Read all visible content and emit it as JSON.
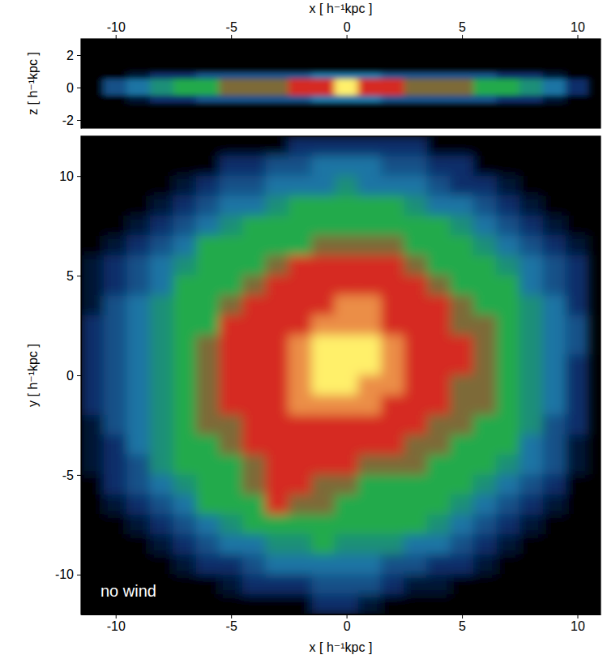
{
  "chart_data": [
    {
      "type": "heatmap",
      "x_label": "x [ h⁻¹kpc ]",
      "y_label": "z [ h⁻¹kpc ]",
      "xlim": [
        -11.5,
        11
      ],
      "ylim": [
        -2.5,
        3
      ],
      "xticks": [
        -10,
        -5,
        0,
        5,
        10
      ],
      "yticks": [
        -2,
        0,
        2
      ],
      "zlim": [
        0,
        5
      ],
      "x": [
        -11,
        -10,
        -9,
        -8,
        -7,
        -6,
        -5,
        -4,
        -3,
        -2,
        -1,
        0,
        1,
        2,
        3,
        4,
        5,
        6,
        7,
        8,
        9,
        10
      ],
      "y": [
        0.75,
        0.25,
        -0.25,
        -0.75
      ],
      "cells": [
        [
          0,
          0,
          0.5,
          1,
          1,
          1.5,
          1.5,
          1.5,
          1.5,
          1.5,
          2,
          2,
          2,
          1.5,
          1.5,
          1.5,
          1.5,
          1.5,
          1,
          1,
          0.5,
          0
        ],
        [
          0,
          1.5,
          2,
          2.5,
          3,
          3,
          3.5,
          3.5,
          3.5,
          4,
          4,
          5,
          4,
          4,
          3.5,
          3.5,
          3.5,
          3,
          3,
          2.5,
          2,
          1
        ],
        [
          0,
          1.5,
          2,
          2.5,
          3,
          3,
          3.5,
          3.5,
          3.5,
          4,
          4,
          5,
          4,
          4,
          3.5,
          3.5,
          3.5,
          3,
          3,
          2.5,
          2,
          1
        ],
        [
          0,
          0,
          0.5,
          1,
          1,
          1.5,
          1.5,
          1.5,
          1.5,
          1.5,
          2,
          2,
          2,
          1.5,
          1.5,
          1.5,
          1.5,
          1.5,
          1,
          1,
          0.5,
          0
        ]
      ]
    },
    {
      "type": "heatmap",
      "x_label": "x [ h⁻¹kpc ]",
      "y_label": "y [ h⁻¹kpc ]",
      "annotation": "no wind",
      "xlim": [
        -11.5,
        11
      ],
      "ylim": [
        -12,
        12
      ],
      "xticks": [
        -10,
        -5,
        0,
        5,
        10
      ],
      "yticks": [
        -10,
        -5,
        0,
        5,
        10
      ],
      "zlim": [
        0,
        5
      ],
      "x": [
        -11,
        -10,
        -9,
        -8,
        -7,
        -6,
        -5,
        -4,
        -3,
        -2,
        -1,
        0,
        1,
        2,
        3,
        4,
        5,
        6,
        7,
        8,
        9,
        10
      ],
      "y": [
        11.5,
        10.5,
        9.5,
        8.5,
        7.5,
        6.5,
        5.5,
        4.5,
        3.5,
        2.5,
        1.5,
        0.5,
        -0.5,
        -1.5,
        -2.5,
        -3.5,
        -4.5,
        -5.5,
        -6.5,
        -7.5,
        -8.5,
        -9.5,
        -10.5,
        -11.5
      ],
      "cells": [
        [
          0,
          0,
          0,
          0,
          0,
          0,
          0,
          0,
          0,
          1,
          1,
          1,
          1,
          1,
          1,
          0,
          0,
          0,
          0,
          0,
          0,
          0
        ],
        [
          0,
          0,
          0,
          0,
          0,
          0,
          1,
          1,
          1.5,
          1.5,
          2,
          2,
          2,
          1.5,
          1.5,
          1,
          1,
          0,
          0,
          0,
          0,
          0
        ],
        [
          0,
          0,
          0,
          0,
          0.5,
          1,
          1.5,
          1.5,
          2,
          2,
          2,
          2.5,
          2,
          2,
          2,
          1.5,
          1,
          1,
          0.5,
          0,
          0,
          0
        ],
        [
          0,
          0,
          0,
          0.5,
          1,
          1.5,
          2,
          2,
          2.5,
          3,
          3,
          3,
          3,
          3,
          2.5,
          2,
          2,
          1.5,
          1,
          0.5,
          0,
          0
        ],
        [
          0,
          0,
          0.5,
          1,
          1.5,
          2,
          2.5,
          3,
          3,
          3,
          3,
          3,
          3,
          3,
          3,
          3,
          2.5,
          2,
          1.5,
          1,
          0.5,
          0
        ],
        [
          0,
          0.5,
          1,
          1.5,
          2,
          3,
          3,
          3,
          3,
          3,
          3.5,
          3.5,
          3.5,
          3.5,
          3,
          3,
          3,
          2.5,
          2,
          1.5,
          1,
          0.5
        ],
        [
          0.5,
          1,
          1.5,
          2,
          2.5,
          3,
          3,
          3,
          3.5,
          4,
          4,
          4,
          4,
          4,
          3.5,
          3,
          3,
          3,
          2.5,
          2,
          1.5,
          1
        ],
        [
          0.5,
          1,
          1.5,
          2,
          3,
          3,
          3,
          3.5,
          4,
          4,
          4,
          4,
          4,
          4,
          4,
          3.5,
          3,
          3,
          3,
          2,
          1.5,
          1
        ],
        [
          0.5,
          1.5,
          2,
          2.5,
          3,
          3,
          3.5,
          4,
          4,
          4,
          4,
          4.5,
          4.5,
          4,
          4,
          4,
          3.5,
          3,
          3,
          2.5,
          2,
          1
        ],
        [
          1,
          1.5,
          2,
          2.5,
          3,
          3,
          4,
          4,
          4,
          4,
          4.5,
          4.5,
          4.5,
          4,
          4,
          4,
          3.5,
          3.5,
          3,
          2.5,
          2,
          1.5
        ],
        [
          1,
          1.5,
          2,
          2.5,
          3,
          3.5,
          4,
          4,
          4,
          4.5,
          5,
          5,
          5,
          4.5,
          4,
          4,
          4,
          3.5,
          3,
          2.5,
          2,
          1.5
        ],
        [
          1,
          1.5,
          2,
          2.5,
          3,
          3.5,
          4,
          4,
          4,
          4.5,
          5,
          5,
          5,
          4.5,
          4,
          4,
          4,
          3.5,
          3,
          2.5,
          2,
          1
        ],
        [
          1,
          1.5,
          2,
          2.5,
          3,
          3.5,
          4,
          4,
          4,
          4.5,
          5,
          5,
          4.5,
          4.5,
          4,
          4,
          3.5,
          3.5,
          3,
          2.5,
          2,
          1
        ],
        [
          1,
          1.5,
          2,
          2.5,
          3,
          3.5,
          4,
          4,
          4,
          4.5,
          4.5,
          4.5,
          4.5,
          4,
          4,
          4,
          3.5,
          3.5,
          3,
          2.5,
          2,
          1
        ],
        [
          0.5,
          1.5,
          2,
          2.5,
          3,
          3.5,
          3.5,
          4,
          4,
          4,
          4,
          4,
          4,
          4,
          4,
          3.5,
          3.5,
          3,
          3,
          2.5,
          1.5,
          1
        ],
        [
          0.5,
          1,
          2,
          2.5,
          3,
          3,
          3.5,
          4,
          4,
          4,
          4,
          4,
          4,
          4,
          3.5,
          3.5,
          3,
          3,
          3,
          2,
          1.5,
          0.5
        ],
        [
          0.5,
          1,
          1.5,
          2.5,
          3,
          3,
          3,
          3.5,
          4,
          4,
          4,
          4,
          3.5,
          3.5,
          3.5,
          3,
          3,
          3,
          2.5,
          2,
          1.5,
          0.5
        ],
        [
          0,
          1,
          1.5,
          2,
          2.5,
          3,
          3,
          3.5,
          4,
          4,
          3.5,
          3.5,
          3,
          3,
          3,
          3,
          3,
          2.5,
          2,
          1.5,
          1,
          0
        ],
        [
          0,
          0.5,
          1,
          1.5,
          2,
          3,
          3,
          3,
          4,
          3.5,
          3.5,
          3,
          3,
          3,
          3,
          3,
          2.5,
          2,
          1.5,
          1,
          0.5,
          0
        ],
        [
          0,
          0,
          0.5,
          1,
          1.5,
          2,
          2.5,
          3,
          3,
          3,
          3,
          3,
          3,
          3,
          3,
          2.5,
          2,
          1.5,
          1,
          0.5,
          0,
          0
        ],
        [
          0,
          0,
          0,
          0.5,
          1,
          1.5,
          2,
          2,
          2.5,
          2.5,
          3,
          2.5,
          2.5,
          2.5,
          2,
          2,
          1.5,
          1,
          0.5,
          0,
          0,
          0
        ],
        [
          0,
          0,
          0,
          0,
          0.5,
          1,
          1,
          1.5,
          2,
          2,
          2,
          2,
          2,
          1.5,
          1.5,
          1,
          1,
          0.5,
          0,
          0,
          0,
          0
        ],
        [
          0,
          0,
          0,
          0,
          0,
          0,
          0.5,
          1,
          1,
          1,
          1.5,
          1.5,
          1.5,
          1,
          0.5,
          0.5,
          0,
          0,
          0,
          0,
          0,
          0
        ],
        [
          0,
          0,
          0,
          0,
          0,
          0,
          0,
          0,
          0,
          0,
          1,
          1,
          0.5,
          0,
          0,
          0,
          0,
          0,
          0,
          0,
          0,
          0
        ]
      ]
    }
  ]
}
